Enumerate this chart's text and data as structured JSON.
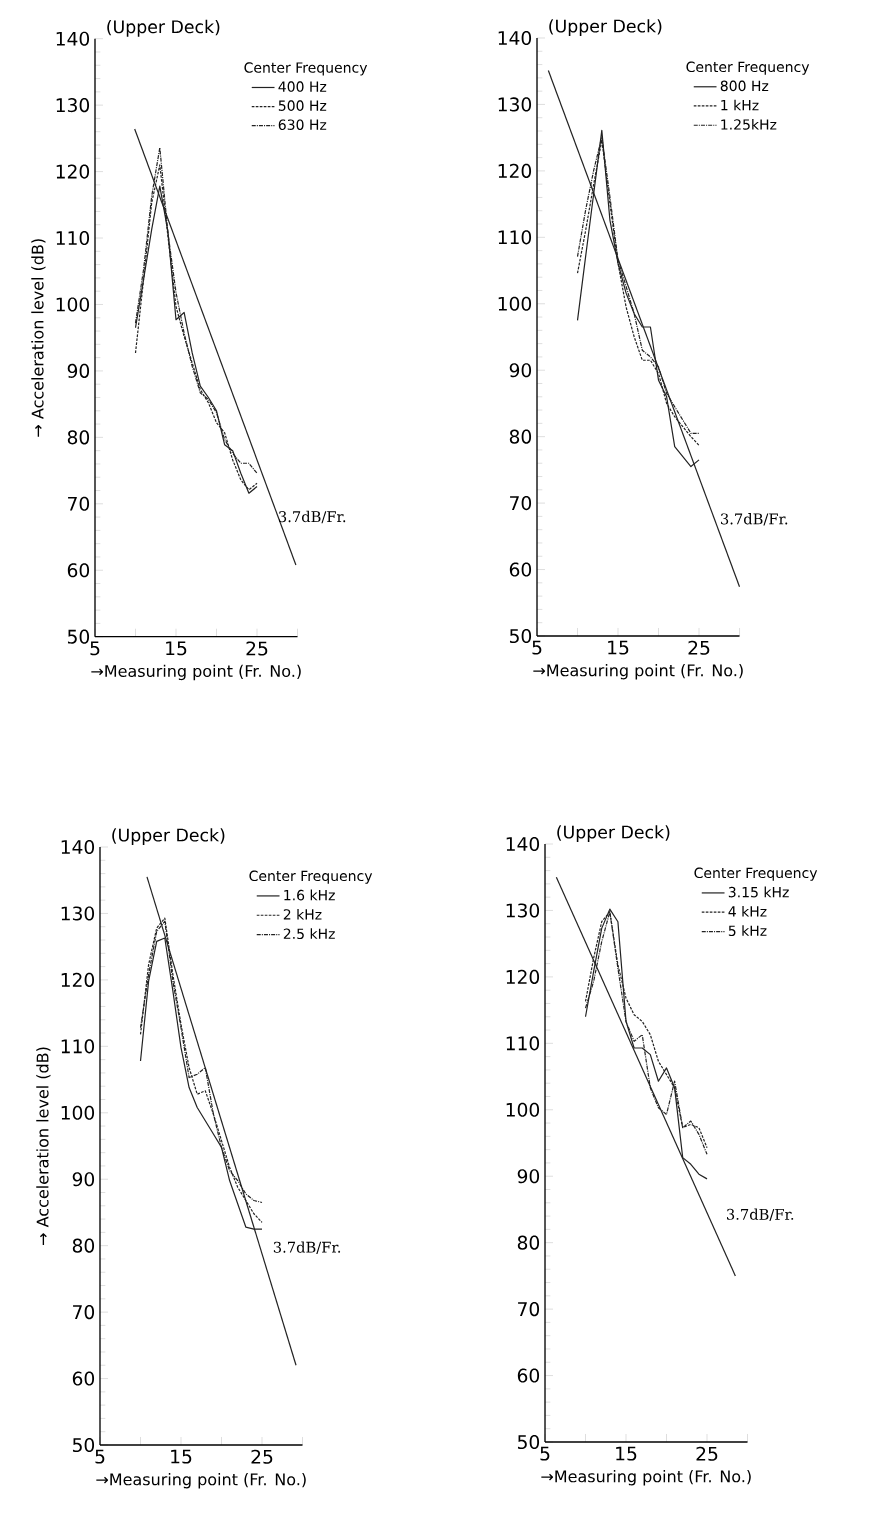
{
  "chart_data": [
    {
      "type": "line",
      "title": "(Upper Deck)",
      "xlabel": "→Measuring point (Fr. No.)",
      "ylabel": "→ Acceleration level (dB)",
      "legend_title": "Center Frequency",
      "legend": "top right",
      "x": [
        10,
        11,
        12,
        13,
        14,
        15,
        16,
        17,
        18,
        19,
        20,
        21,
        22,
        23,
        24,
        25
      ],
      "xlim": [
        5,
        30
      ],
      "ylim": [
        50,
        140
      ],
      "xticks": [
        5,
        {
          "value": 10,
          "label": null
        },
        15,
        {
          "value": 20,
          "label": null
        },
        25,
        {
          "value": 30,
          "label": null
        }
      ],
      "yticks": [
        50,
        60,
        70,
        80,
        90,
        100,
        110,
        120,
        130,
        140
      ],
      "series": [
        {
          "name": "400 Hz",
          "color": "#222222",
          "line_style": "solid",
          "values": [
            96.5,
            103.8,
            111.3,
            117.8,
            111,
            97.7,
            98.8,
            92.7,
            87.7,
            86,
            84,
            78.9,
            78,
            74.6,
            71.6,
            72.6
          ]
        },
        {
          "name": "500 Hz",
          "color": "#222222",
          "line_style": "dashed",
          "values": [
            92.7,
            103.8,
            115.3,
            121,
            110.3,
            99.7,
            95.2,
            91.2,
            87.2,
            85.2,
            82.2,
            80.7,
            76.6,
            73.6,
            72.1,
            73.1
          ]
        },
        {
          "name": "630 Hz",
          "color": "#222222",
          "line_style": "dashdot",
          "values": [
            97.2,
            105.3,
            116.3,
            123.6,
            110.8,
            101.8,
            95.7,
            90.7,
            86.7,
            85.7,
            83.7,
            79.7,
            77.6,
            76.1,
            76.1,
            74.6
          ]
        },
        {
          "color": "#222222",
          "line_style": "solid",
          "x": [
            9.9,
            29.8
          ],
          "values": [
            126.4,
            60.8
          ]
        }
      ],
      "annotations": [
        "3.7dB/Fr."
      ]
    },
    {
      "type": "line",
      "title": "(Upper Deck)",
      "xlabel": "→Measuring point (Fr. No.)",
      "legend_title": "Center Frequency",
      "legend": "top right",
      "x": [
        10,
        11,
        12,
        13,
        14,
        15,
        16,
        17,
        18,
        19,
        20,
        21,
        22,
        23,
        24,
        25
      ],
      "xlim": [
        5,
        30
      ],
      "ylim": [
        50,
        140
      ],
      "xticks": [
        5,
        {
          "value": 10,
          "label": null
        },
        15,
        {
          "value": 20,
          "label": null
        },
        25,
        {
          "value": 30,
          "label": null
        }
      ],
      "yticks": [
        50,
        60,
        70,
        80,
        90,
        100,
        110,
        120,
        130,
        140
      ],
      "series": [
        {
          "name": "800 Hz",
          "color": "#222222",
          "line_style": "solid",
          "values": [
            97.5,
            107.1,
            116.6,
            126.1,
            112.6,
            106.1,
            101.6,
            98.5,
            96.5,
            96.5,
            88.5,
            86,
            78.5,
            77,
            75.5,
            76.5
          ]
        },
        {
          "name": "1 kHz",
          "color": "#222222",
          "line_style": "dashed",
          "values": [
            104.6,
            111,
            118,
            124.6,
            115.1,
            106.1,
            99.5,
            95,
            91.5,
            91.5,
            89.5,
            85,
            83,
            81.5,
            80,
            78.7
          ]
        },
        {
          "name": "1.25kHz",
          "color": "#222222",
          "line_style": "dashdot",
          "values": [
            107.1,
            114.1,
            120.1,
            125.1,
            116.1,
            106.6,
            102.6,
            98.5,
            93,
            92,
            90.5,
            86.5,
            84.5,
            82.5,
            80.5,
            80.5
          ]
        },
        {
          "color": "#222222",
          "line_style": "solid",
          "x": [
            6.4,
            30
          ],
          "values": [
            135.1,
            57.4
          ]
        }
      ],
      "annotations": [
        "3.7dB/Fr."
      ]
    },
    {
      "type": "line",
      "title": "(Upper Deck)",
      "xlabel": "→Measuring point (Fr. No.)",
      "ylabel": "→ Acceleration level (dB)",
      "legend_title": "Center Frequency",
      "legend": "top right",
      "x": [
        10,
        11,
        12,
        13,
        14,
        15,
        16,
        17,
        18,
        19,
        20,
        21,
        22,
        23,
        24,
        25
      ],
      "xlim": [
        5,
        30
      ],
      "ylim": [
        50,
        140
      ],
      "xticks": [
        5,
        {
          "value": 10,
          "label": null
        },
        15,
        {
          "value": 20,
          "label": null
        },
        25,
        {
          "value": 30,
          "label": null
        }
      ],
      "yticks": [
        50,
        60,
        70,
        80,
        90,
        100,
        110,
        120,
        130,
        140
      ],
      "series": [
        {
          "name": "1.6 kHz",
          "color": "#222222",
          "line_style": "solid",
          "values": [
            107.8,
            119.8,
            125.8,
            126.3,
            118.3,
            109.8,
            103.8,
            100.8,
            98.8,
            96.8,
            94.8,
            89.8,
            86.3,
            82.8,
            82.5,
            82.5
          ]
        },
        {
          "name": "2 kHz",
          "color": "#222222",
          "line_style": "dashed",
          "values": [
            111.8,
            122.3,
            127.8,
            129.3,
            120.8,
            113.3,
            106.8,
            102.8,
            103.3,
            99.8,
            95.8,
            91.8,
            88.8,
            86.8,
            84.8,
            83.5
          ]
        },
        {
          "name": "2.5 kHz",
          "color": "#222222",
          "line_style": "dashdot",
          "values": [
            112.8,
            120.8,
            127.3,
            128.8,
            119.8,
            112.8,
            105.3,
            105.8,
            106.8,
            99.8,
            94.8,
            91.3,
            89.8,
            87.8,
            86.8,
            86.5
          ]
        },
        {
          "color": "#222222",
          "line_style": "solid",
          "x": [
            10.8,
            29.2
          ],
          "values": [
            135.5,
            62
          ]
        }
      ],
      "annotations": [
        "3.7dB/Fr."
      ]
    },
    {
      "type": "line",
      "title": "(Upper Deck)",
      "xlabel": "→Measuring point (Fr. No.)",
      "legend_title": "Center Frequency",
      "legend": "top right",
      "x": [
        10,
        11,
        12,
        13,
        14,
        15,
        16,
        17,
        18,
        19,
        20,
        21,
        22,
        23,
        24,
        25
      ],
      "xlim": [
        5,
        30
      ],
      "ylim": [
        50,
        140
      ],
      "xticks": [
        5,
        {
          "value": 10,
          "label": null
        },
        15,
        {
          "value": 20,
          "label": null
        },
        25,
        {
          "value": 30,
          "label": null
        }
      ],
      "yticks": [
        50,
        60,
        70,
        80,
        90,
        100,
        110,
        120,
        130,
        140
      ],
      "series": [
        {
          "name": "3.15 kHz",
          "color": "#222222",
          "line_style": "solid",
          "values": [
            114,
            120.8,
            127.3,
            130.2,
            128.3,
            113.3,
            109.3,
            109.3,
            108.3,
            104.3,
            106.3,
            103.3,
            92.8,
            91.8,
            90.3,
            89.6
          ]
        },
        {
          "name": "4 kHz",
          "color": "#222222",
          "line_style": "dashed",
          "values": [
            116.3,
            122.8,
            128.3,
            129.8,
            121.8,
            116.8,
            114.3,
            113.3,
            111.3,
            107.3,
            105.3,
            103.3,
            97.3,
            97.8,
            97.3,
            94.3
          ]
        },
        {
          "name": "5 kHz",
          "color": "#222222",
          "line_style": "dashdot",
          "values": [
            115.3,
            119.3,
            125.3,
            129.8,
            121.3,
            113.3,
            110.3,
            111.3,
            103.3,
            100.3,
            99.3,
            104.3,
            97.3,
            98.3,
            96.3,
            93.3
          ]
        },
        {
          "color": "#222222",
          "line_style": "solid",
          "x": [
            6.4,
            28.5
          ],
          "values": [
            135,
            75
          ]
        }
      ],
      "annotations": [
        "3.7dB/Fr."
      ]
    }
  ]
}
